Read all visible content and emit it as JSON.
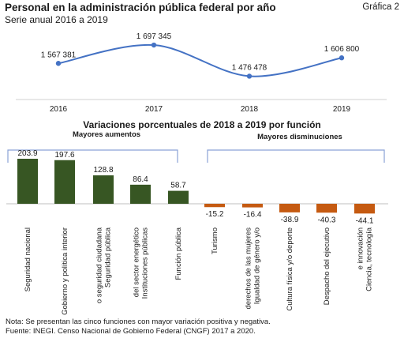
{
  "title": "Personal en la administración pública federal por año",
  "subtitle": "Serie anual 2016 a 2019",
  "figure_label": "Gráfica 2",
  "note": "Nota: Se presentan las cinco funciones con mayor variación positiva y negativa.",
  "source": "Fuente: INEGI. Censo Nacional de Gobierno Federal (CNGF) 2017 a 2020.",
  "colors": {
    "line": "#4472c4",
    "positive": "#375623",
    "negative": "#c55a11",
    "bracket": "#8aa2d6"
  },
  "chart_data": [
    {
      "type": "line",
      "x": [
        "2016",
        "2017",
        "2018",
        "2019"
      ],
      "values": [
        1567381,
        1697345,
        1476478,
        1606800
      ],
      "value_labels": [
        "1 567 381",
        "1 697 345",
        "1 476 478",
        "1 606 800"
      ],
      "title": "",
      "xlabel": "",
      "ylabel": "",
      "grid": false
    },
    {
      "type": "bar",
      "title": "Variaciones porcentuales de 2018 a 2019 por función",
      "groups": {
        "increases": "Mayores aumentos",
        "decreases": "Mayores disminuciones"
      },
      "categories": [
        "Seguridad nacional",
        "Gobierno y política interior",
        "Seguridad pública o seguridad ciudadana",
        "Instituciones públicas del sector energético",
        "Función pública",
        "Turismo",
        "Igualdad de género y/o derechos de las mujeres",
        "Cultura física y/o deporte",
        "Despacho del ejecutivo",
        "Ciencia, tecnología e innovación"
      ],
      "category_lines": [
        [
          "Seguridad nacional"
        ],
        [
          "Gobierno y política interior"
        ],
        [
          "Seguridad pública",
          "o seguridad ciudadana"
        ],
        [
          "Instituciones públicas",
          "del sector energético"
        ],
        [
          "Función pública"
        ],
        [
          "Turismo"
        ],
        [
          "Igualdad de género y/o",
          "derechos de las mujeres"
        ],
        [
          "Cultura física y/o deporte"
        ],
        [
          "Despacho del ejecutivo"
        ],
        [
          "Ciencia, tecnología",
          "e innovación"
        ]
      ],
      "values": [
        203.9,
        197.6,
        128.8,
        86.4,
        58.7,
        -15.2,
        -16.4,
        -38.9,
        -40.3,
        -44.1
      ],
      "value_labels": [
        "203.9",
        "197.6",
        "128.8",
        "86.4",
        "58.7",
        "-15.2",
        "-16.4",
        "-38.9",
        "-40.3",
        "-44.1"
      ],
      "xlabel": "",
      "ylabel": "",
      "grid": false
    }
  ]
}
